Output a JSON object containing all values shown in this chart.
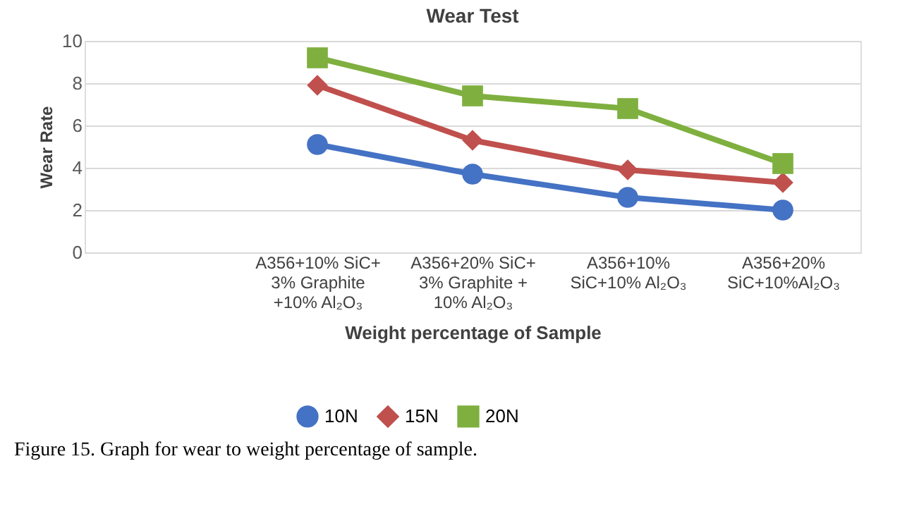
{
  "chart_data": {
    "type": "line",
    "title": "Wear Test",
    "xlabel": "Weight percentage of Sample",
    "ylabel": "Wear Rate",
    "categories": [
      null,
      "A356+10% SiC+\n3% Graphite\n+10% Al₂O₃",
      "A356+20% SiC+\n3% Graphite +\n10% Al₂O₃",
      "A356+10%\nSiC+10% Al₂O₃",
      "A356+20%\nSiC+10%Al₂O₃"
    ],
    "series": [
      {
        "name": "10N",
        "color": "#4472c4",
        "marker": "circle",
        "values": [
          null,
          5.1,
          3.7,
          2.6,
          2.0
        ]
      },
      {
        "name": "15N",
        "color": "#c0504d",
        "marker": "diamond",
        "values": [
          null,
          7.9,
          5.3,
          3.9,
          3.3
        ]
      },
      {
        "name": "20N",
        "color": "#7fb03f",
        "marker": "square",
        "values": [
          null,
          9.2,
          7.4,
          6.8,
          4.2
        ]
      }
    ],
    "ylim": [
      0,
      10
    ],
    "yticks": [
      0,
      2,
      4,
      6,
      8,
      10
    ],
    "grid": "y",
    "legend": "bottom",
    "line_style": "solid",
    "annotations": [
      "Figure 15. Graph for wear to weight percentage of sample."
    ]
  }
}
